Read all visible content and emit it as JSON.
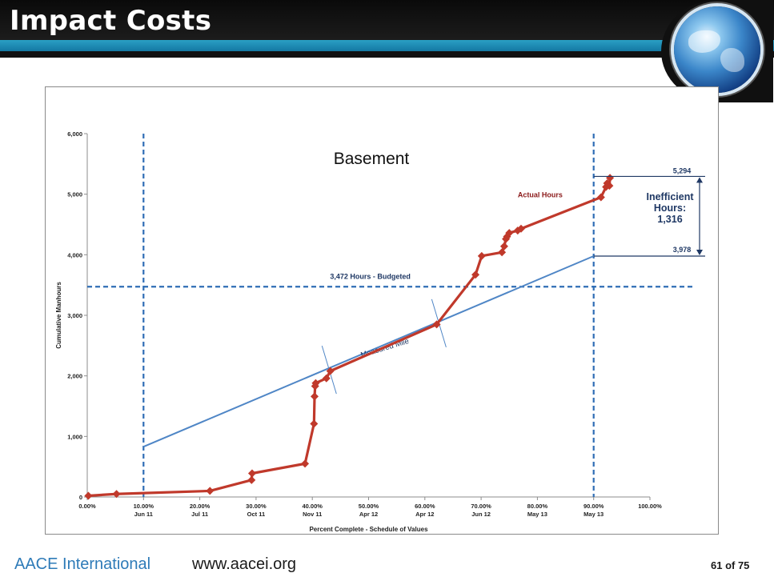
{
  "slide": {
    "title": "Impact Costs",
    "footer_org": "AACE International",
    "footer_url": "www.aacei.org",
    "page_label": "61 of 75"
  },
  "chart_data": {
    "type": "line",
    "title": "Basement",
    "xlabel": "Percent Complete - Schedule of Values",
    "ylabel": "Cumulative Manhours",
    "xlim": [
      0,
      100
    ],
    "ylim": [
      0,
      6000
    ],
    "y_ticks": [
      0,
      1000,
      2000,
      3000,
      4000,
      5000,
      6000
    ],
    "y_tick_labels": [
      "0",
      "1,000",
      "2,000",
      "3,000",
      "4,000",
      "5,000",
      "6,000"
    ],
    "x_ticks": [
      0,
      10,
      20,
      30,
      40,
      50,
      60,
      70,
      80,
      90,
      100
    ],
    "x_tick_labels": [
      "0.00%",
      "10.00%",
      "20.00%",
      "30.00%",
      "40.00%",
      "50.00%",
      "60.00%",
      "70.00%",
      "80.00%",
      "90.00%",
      "100.00%"
    ],
    "x_date_labels": [
      "",
      "Jun 11",
      "Jul 11",
      "Oct 11",
      "Nov 11",
      "Apr 12",
      "Apr 12",
      "Jun 12",
      "May 13",
      "May 13",
      ""
    ],
    "grid": false,
    "colors": {
      "actual": "#c0392b",
      "measured_mile": "#4f86c6",
      "budget": "#2f6db5",
      "vertical": "#2f6db5",
      "annotation_text": "#1f3864",
      "actual_label": "#8b1a1a"
    },
    "series": [
      {
        "name": "Actual Hours",
        "x": [
          0.2,
          5.2,
          21.8,
          29.2,
          29.3,
          38.7,
          40.3,
          40.4,
          40.5,
          40.6,
          42.5,
          43.2,
          62.1,
          69.0,
          70.1,
          73.7,
          74.1,
          74.4,
          74.6,
          75.0,
          76.5,
          77.1,
          91.3,
          92.2,
          92.4,
          92.8,
          92.9
        ],
        "y": [
          20,
          50,
          100,
          280,
          390,
          550,
          1210,
          1660,
          1830,
          1880,
          1960,
          2080,
          2850,
          3670,
          3980,
          4040,
          4140,
          4260,
          4300,
          4360,
          4400,
          4430,
          4950,
          5120,
          5180,
          5140,
          5270
        ]
      },
      {
        "name": "Measured Mile",
        "x": [
          10,
          90
        ],
        "y": [
          830,
          3978
        ]
      }
    ],
    "budget_line": {
      "y": 3472,
      "label": "3,472 Hours - Budgeted"
    },
    "vertical_lines": [
      10,
      90
    ],
    "annotations": {
      "actual_label": "Actual Hours",
      "measured_label": "Measured Mile",
      "top_value": "5,294",
      "bottom_value": "3,978",
      "inefficient_line1": "Inefficient",
      "inefficient_line2": "Hours:",
      "inefficient_line3": "1,316"
    }
  }
}
